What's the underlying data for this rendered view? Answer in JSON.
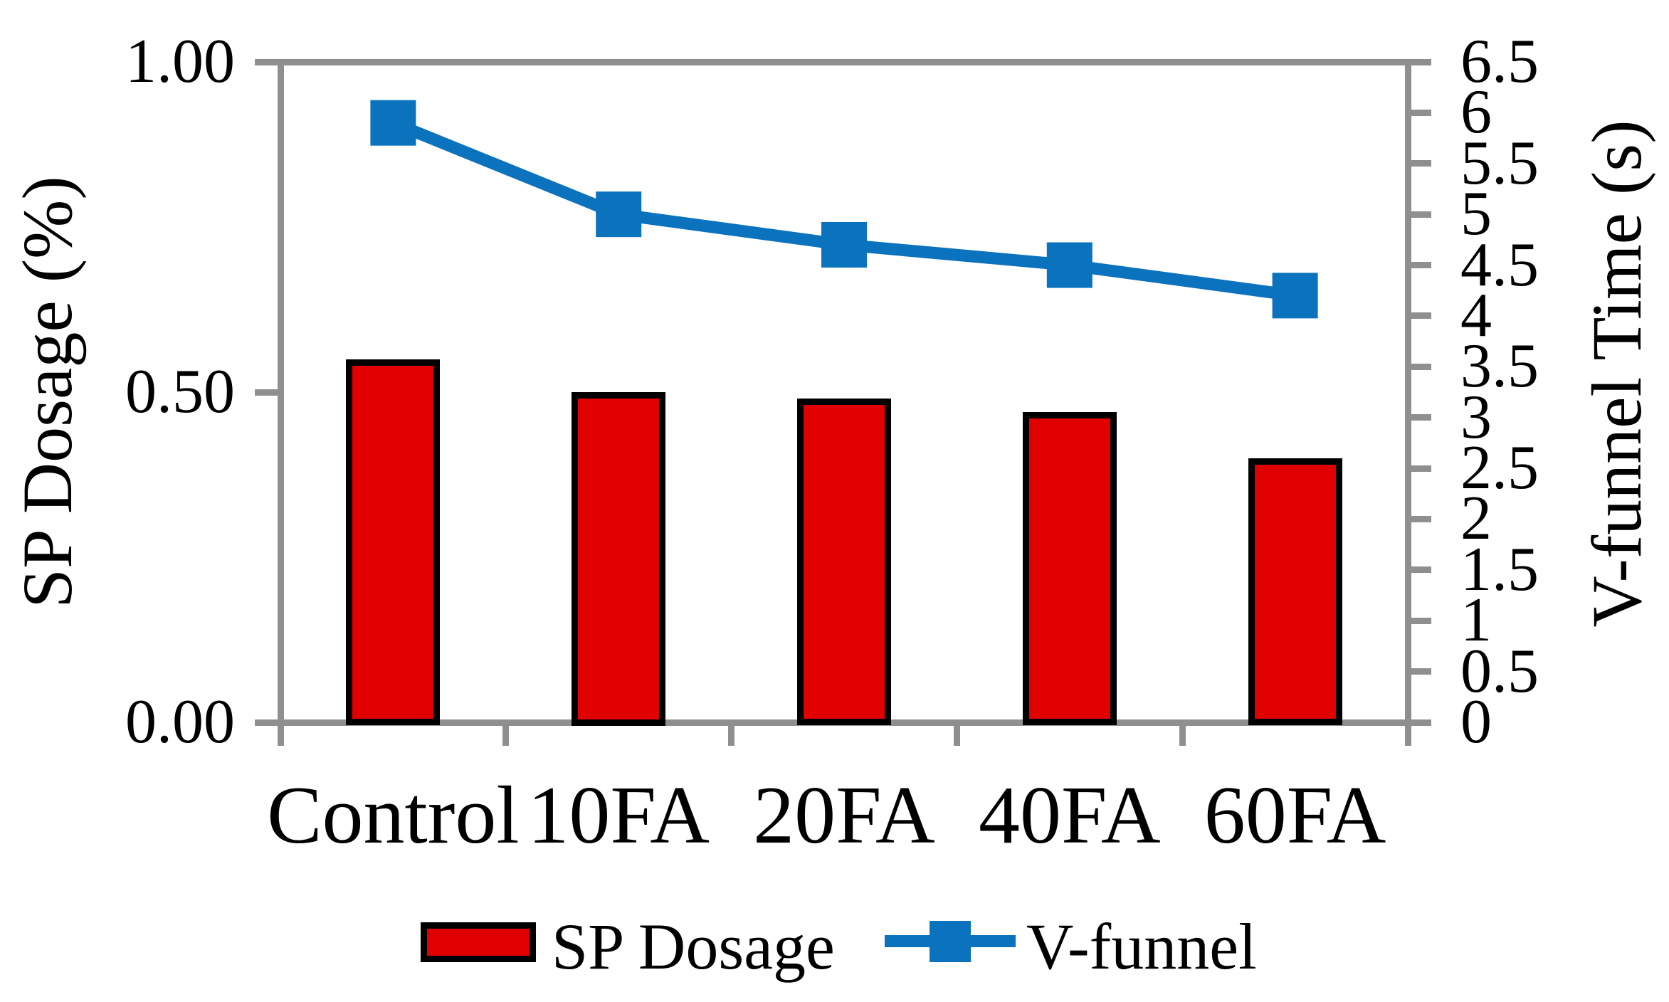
{
  "chart_data": {
    "type": "combo",
    "categories": [
      "Control",
      "10FA",
      "20FA",
      "40FA",
      "60FA"
    ],
    "series": [
      {
        "name": "SP Dosage",
        "chart": "bar",
        "axis": "left",
        "color": "#E00000",
        "border_color": "#000000",
        "values": [
          0.55,
          0.5,
          0.49,
          0.47,
          0.4
        ]
      },
      {
        "name": "V-funnel",
        "chart": "line",
        "axis": "right",
        "color": "#0B72BE",
        "marker": "square",
        "values": [
          5.9,
          5.0,
          4.7,
          4.5,
          4.2
        ]
      }
    ],
    "left_axis": {
      "title": "SP Dosage (%)",
      "min": 0,
      "max": 1,
      "tick_values": [
        0,
        0.5,
        1
      ],
      "tick_labels": [
        "0.00",
        "0.50",
        "1.00"
      ]
    },
    "right_axis": {
      "title": "V-funnel Time (s)",
      "min": 0,
      "max": 6.5,
      "tick_step": 0.5,
      "tick_labels": [
        "0",
        "0.5",
        "1",
        "1.5",
        "2",
        "2.5",
        "3",
        "3.5",
        "4",
        "4.5",
        "5",
        "5.5",
        "6",
        "6.5"
      ]
    },
    "x_axis": {
      "boundary_tick_count": 6
    },
    "legend": [
      {
        "label": "SP Dosage",
        "swatch": "bar"
      },
      {
        "label": "V-funnel",
        "swatch": "line-marker"
      }
    ],
    "legend_position": "bottom",
    "grid": false,
    "plot_border": "box",
    "axis_color": "#8F8F8F",
    "text_color": "#000000",
    "background": "#ffffff"
  }
}
